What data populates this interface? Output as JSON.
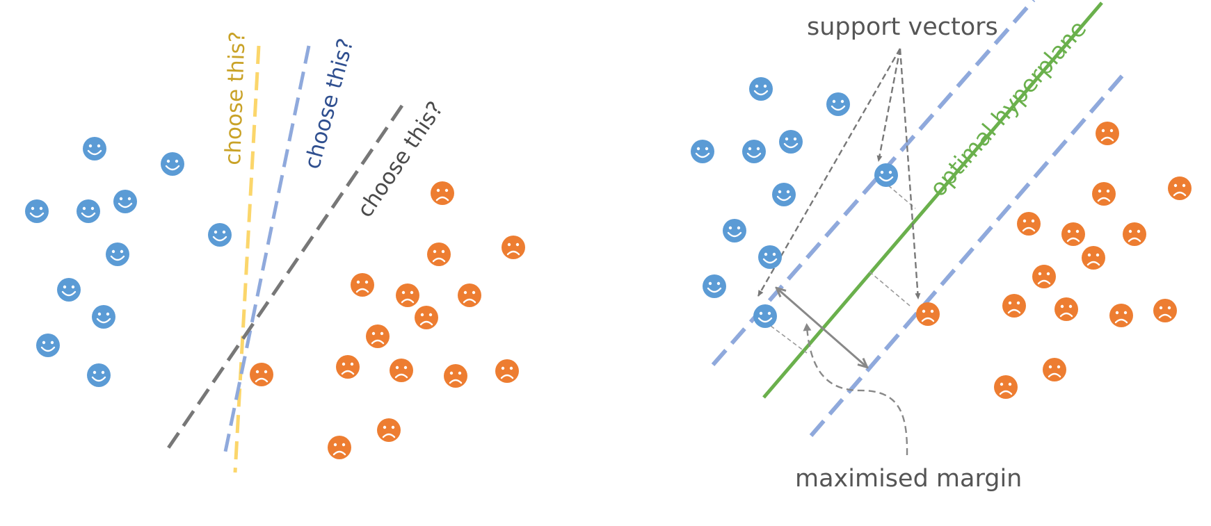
{
  "left_panel": {
    "candidate_labels": [
      {
        "text": "choose this?",
        "color": "#c9a227"
      },
      {
        "text": "choose this?",
        "color": "#2f4f8f"
      },
      {
        "text": "choose this?",
        "color": "#4a4a4a"
      }
    ],
    "line_colors": [
      "#fbd66b",
      "#8fa9dc",
      "#777777"
    ]
  },
  "right_panel": {
    "support_vectors_label": "support vectors",
    "hyperplane_label": "optimal hyperplane",
    "margin_label": "maximised margin",
    "hyperplane_color": "#6ab04c",
    "margin_line_color": "#8fa9dc",
    "label_color": "#555555"
  },
  "colors": {
    "class_a": "#5b9bd5",
    "class_b": "#ed7d31",
    "annotation": "#777777"
  },
  "icons": {
    "class_a": "smiley-face-icon",
    "class_b": "frowny-face-icon"
  }
}
